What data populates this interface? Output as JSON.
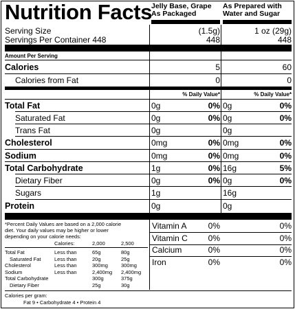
{
  "title": "Nutrition Facts",
  "columns": {
    "packaged": "Jelly Base, Grape As Packaged",
    "packaged_l1": "Jelly Base, Grape",
    "packaged_l2": "As Packaged",
    "prepared_l1": "As Prepared with",
    "prepared_l2": "Water and Sugar"
  },
  "serving": {
    "size_label": "Serving Size",
    "size_packaged": "(1.5g)",
    "size_prepared": "1 oz (29g)",
    "per_container_label": "Servings Per Container 448",
    "per_container_packaged": "448",
    "per_container_prepared": "448"
  },
  "amount_per_serving": "Amount Per Serving",
  "calories": {
    "label": "Calories",
    "packaged": "5",
    "prepared": "60"
  },
  "calories_fat": {
    "label": "Calories from Fat",
    "packaged": "0",
    "prepared": "0"
  },
  "dv_header": "% Daily Value*",
  "nutrients": [
    {
      "label": "Total Fat",
      "bold": true,
      "p_amt": "0g",
      "p_dv": "0%",
      "w_amt": "0g",
      "w_dv": "0%"
    },
    {
      "label": "Saturated Fat",
      "bold": false,
      "p_amt": "0g",
      "p_dv": "0%",
      "w_amt": "0g",
      "w_dv": "0%"
    },
    {
      "label": "Trans Fat",
      "bold": false,
      "p_amt": "0g",
      "p_dv": "",
      "w_amt": "0g",
      "w_dv": ""
    },
    {
      "label": "Cholesterol",
      "bold": true,
      "p_amt": "0mg",
      "p_dv": "0%",
      "w_amt": "0mg",
      "w_dv": "0%"
    },
    {
      "label": "Sodium",
      "bold": true,
      "p_amt": "0mg",
      "p_dv": "0%",
      "w_amt": "0mg",
      "w_dv": "0%"
    },
    {
      "label": "Total Carbohydrate",
      "bold": true,
      "p_amt": "1g",
      "p_dv": "0%",
      "w_amt": "16g",
      "w_dv": "5%"
    },
    {
      "label": "Dietary Fiber",
      "bold": false,
      "p_amt": "0g",
      "p_dv": "0%",
      "w_amt": "0g",
      "w_dv": "0%"
    },
    {
      "label": "Sugars",
      "bold": false,
      "p_amt": "1g",
      "p_dv": "",
      "w_amt": "16g",
      "w_dv": ""
    },
    {
      "label": "Protein",
      "bold": true,
      "p_amt": "0g",
      "p_dv": "",
      "w_amt": "0g",
      "w_dv": ""
    }
  ],
  "footnote": {
    "line1": "*Percent Daily Values are based on a 2,000 calorie",
    "line2": "diet. Your daily values may be higher or lower",
    "line3": "depending on your calorie needs:",
    "calories_label": "Calories:",
    "cal_2000": "2,000",
    "cal_2500": "2,500",
    "rows": [
      {
        "label": "Total Fat",
        "qual": "Less than",
        "a": "65g",
        "b": "80g"
      },
      {
        "label": "Saturated Fat",
        "qual": "Less than",
        "a": "20g",
        "b": "25g"
      },
      {
        "label": "Cholesterol",
        "qual": "Less than",
        "a": "300mg",
        "b": "300mg"
      },
      {
        "label": "Sodium",
        "qual": "Less than",
        "a": "2,400mg",
        "b": "2,400mg"
      },
      {
        "label": "Total Carbohydrate",
        "qual": "",
        "a": "300g",
        "b": "375g"
      },
      {
        "label": "Dietary Fiber",
        "qual": "",
        "a": "25g",
        "b": "30g"
      }
    ],
    "cal_per_gram": "Calories per gram:",
    "cal_per_gram_values": "Fat 9  •  Carbohydrate 4  •  Protein 4"
  },
  "vitamins": [
    {
      "label": "Vitamin A",
      "packaged": "0%",
      "prepared": "0%"
    },
    {
      "label": "Vitamin C",
      "packaged": "0%",
      "prepared": "0%"
    },
    {
      "label": "Calcium",
      "packaged": "0%",
      "prepared": "0%"
    },
    {
      "label": "Iron",
      "packaged": "0%",
      "prepared": "0%"
    }
  ]
}
